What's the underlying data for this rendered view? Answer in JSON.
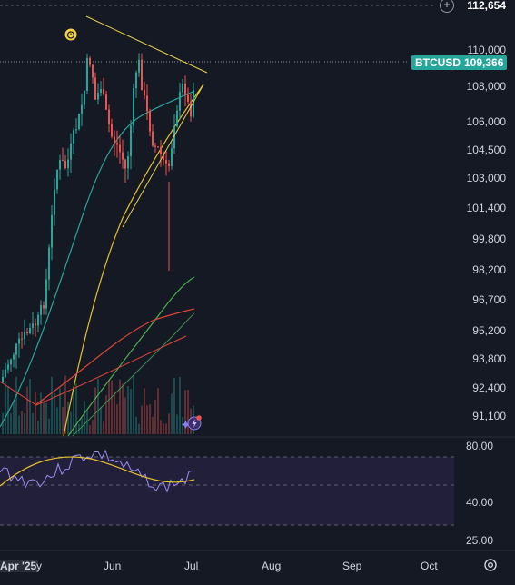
{
  "symbol": "BTCUSD",
  "current_price": "109,366",
  "top_price": "112,654",
  "price_axis": [
    "110,000",
    "108,000",
    "106,000",
    "104,500",
    "103,000",
    "101,400",
    "99,800",
    "98,200",
    "96,700",
    "95,200",
    "93,800",
    "92,400",
    "91,100"
  ],
  "rsi_axis": [
    "80.00",
    "40.00",
    "25.00"
  ],
  "time_axis": [
    "Apr '25",
    "y",
    "Jun",
    "Jul",
    "Aug",
    "Sep",
    "Oct"
  ],
  "icons": {
    "add": "plus-circle-icon",
    "alarm": "alarm-clock-icon",
    "assistant": "sparkle-lightning-icon",
    "settings": "gear-icon"
  },
  "colors": {
    "background": "#151924",
    "up": "#26a69a",
    "down": "#ef5350",
    "trendline": "#e7d14a",
    "ma_yellow": "#e7c229",
    "ma_green": "#4caf50",
    "ma_red": "#e0443a",
    "rsi_line": "#9c8cf2",
    "rsi_band": "#2a2845"
  }
}
